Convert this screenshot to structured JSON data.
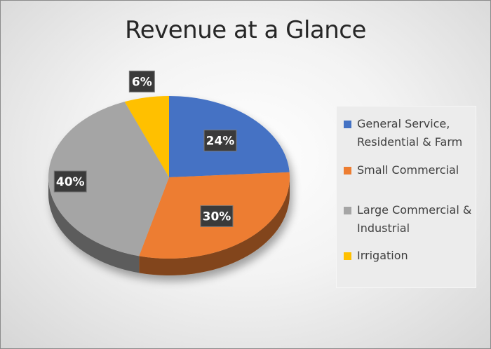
{
  "chart_data": {
    "type": "pie",
    "title": "Revenue at a Glance",
    "slices": [
      {
        "label": "General Service, Residential & Farm",
        "value": 24,
        "display": "24%",
        "color": "#4472c4"
      },
      {
        "label": "Small Commercial",
        "value": 30,
        "display": "30%",
        "color": "#ed7d31"
      },
      {
        "label": "Large Commercial & Industrial",
        "value": 40,
        "display": "40%",
        "color": "#a5a5a5"
      },
      {
        "label": "Irrigation",
        "value": 6,
        "display": "6%",
        "color": "#ffc000"
      }
    ],
    "legend": {
      "position": "right",
      "entries": [
        {
          "lines": [
            "General Service,",
            "Residential & Farm"
          ],
          "color": "#4472c4"
        },
        {
          "lines": [
            "Small Commercial"
          ],
          "color": "#ed7d31"
        },
        {
          "lines": [
            "Large Commercial &",
            "Industrial"
          ],
          "color": "#a5a5a5"
        },
        {
          "lines": [
            "Irrigation"
          ],
          "color": "#ffc000"
        }
      ]
    },
    "style": "3d-pie"
  }
}
